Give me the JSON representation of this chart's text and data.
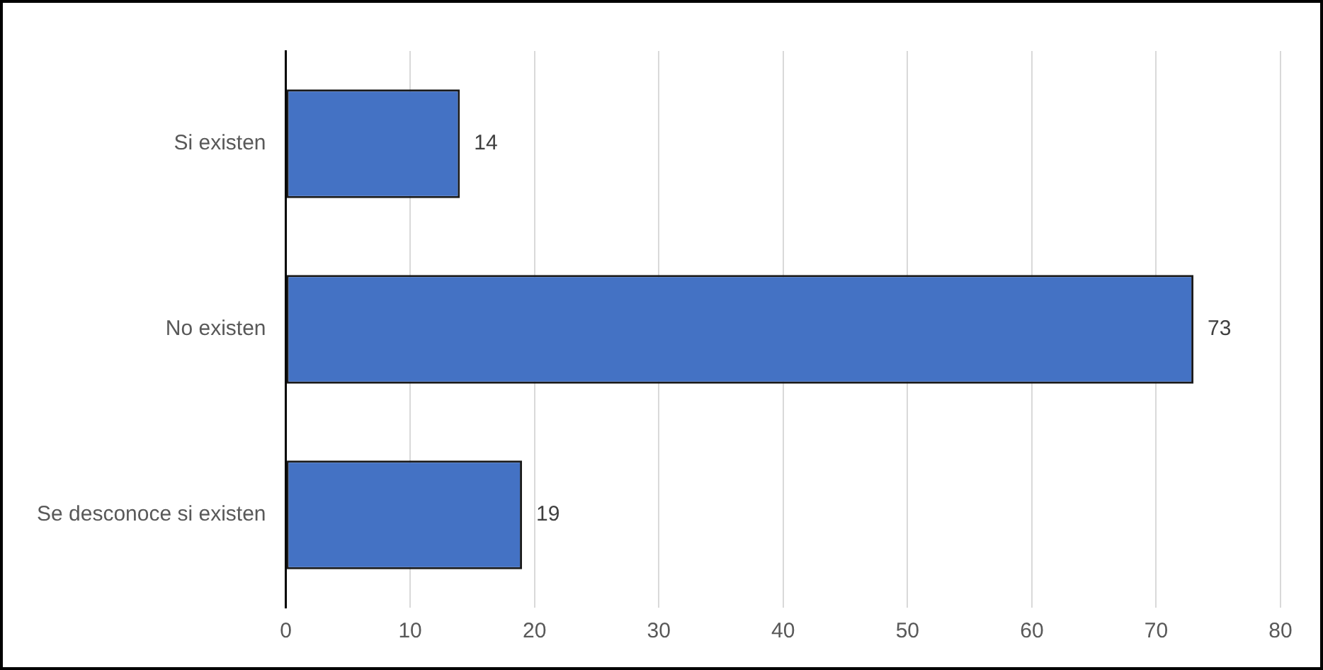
{
  "chart_data": {
    "type": "bar",
    "orientation": "horizontal",
    "categories": [
      "Si existen",
      "No existen",
      "Se desconoce si existen"
    ],
    "values": [
      14,
      73,
      19
    ],
    "color": "#4472c4",
    "xlim": [
      0,
      80
    ],
    "xticks": [
      0,
      10,
      20,
      30,
      40,
      50,
      60,
      70,
      80
    ],
    "grid": "x",
    "data_labels": true,
    "legend": false
  }
}
